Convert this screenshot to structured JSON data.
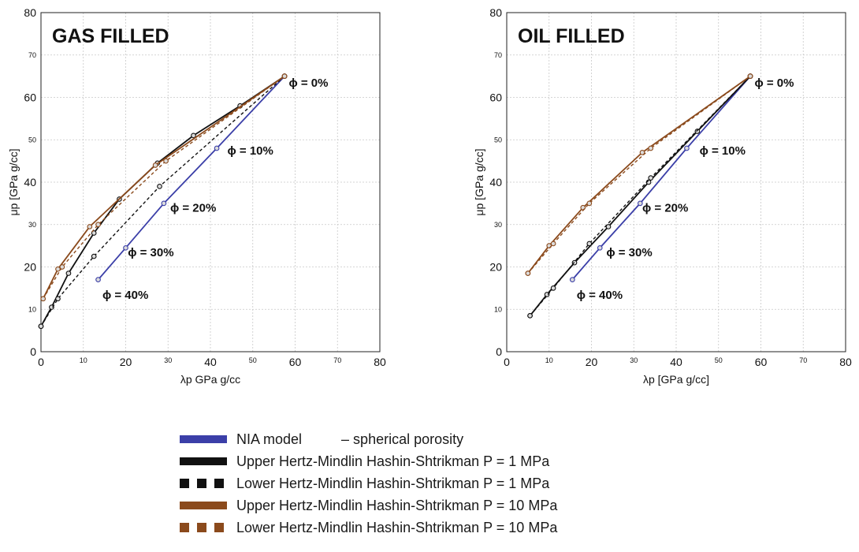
{
  "colors": {
    "nia": "#3b3fa8",
    "hm1": "#111111",
    "hm10": "#8b4a1c",
    "grid": "#c8c8c8",
    "marker_fill": "#dcdcdc"
  },
  "chart_data": [
    {
      "type": "line",
      "title": "GAS FILLED",
      "xlabel": "λp GPa g/cc",
      "ylabel": "μp [GPa g/cc]",
      "xlim": [
        0,
        80
      ],
      "ylim": [
        0,
        80
      ],
      "grid": true,
      "x_major_ticks": [
        "0",
        "20",
        "40",
        "60",
        "80"
      ],
      "x_minor_ticks": [
        "10",
        "30",
        "50",
        "70"
      ],
      "y_major_ticks": [
        "0",
        "20",
        "40",
        "60",
        "80"
      ],
      "y_minor_ticks": [
        "10",
        "30",
        "50",
        "70"
      ],
      "series": [
        {
          "name": "NIA model",
          "style": "solid",
          "color": "nia",
          "x": [
            57.5,
            41.5,
            29,
            20,
            13.5
          ],
          "y": [
            65,
            48,
            35,
            24.5,
            17
          ]
        },
        {
          "name": "Upper Hertz-Mindlin Hashin-Shtrikman P = 1 MPa",
          "style": "solid",
          "color": "hm1",
          "x": [
            0,
            2.5,
            6.5,
            12.5,
            18.5,
            27.5,
            36,
            47,
            57.5
          ],
          "y": [
            6,
            10.5,
            18.5,
            28,
            36,
            44.5,
            51,
            58,
            65
          ]
        },
        {
          "name": "Lower Hertz-Mindlin Hashin-Shtrikman P = 1 MPa",
          "style": "dashed",
          "color": "hm1",
          "x": [
            0,
            4,
            12.5,
            28,
            57.5
          ],
          "y": [
            6,
            12.5,
            22.5,
            39,
            65
          ]
        },
        {
          "name": "Upper Hertz-Mindlin Hashin-Shtrikman P = 10 MPa",
          "style": "solid",
          "color": "hm10",
          "x": [
            0.5,
            4,
            11.5,
            27,
            57.5
          ],
          "y": [
            12.5,
            19.5,
            29.5,
            44,
            65
          ]
        },
        {
          "name": "Lower Hertz-Mindlin Hashin-Shtrikman P = 10 MPa",
          "style": "dashed",
          "color": "hm10",
          "x": [
            0.5,
            5,
            13.5,
            29.5,
            57.5
          ],
          "y": [
            12.5,
            20,
            30,
            45,
            65
          ]
        }
      ],
      "annotations": [
        {
          "text": "ϕ = 0%",
          "x": 58.5,
          "y": 62.5
        },
        {
          "text": "ϕ = 10%",
          "x": 44,
          "y": 46.5
        },
        {
          "text": "ϕ = 20%",
          "x": 30.5,
          "y": 33
        },
        {
          "text": "ϕ = 30%",
          "x": 20.5,
          "y": 22.5
        },
        {
          "text": "ϕ = 40%",
          "x": 14.5,
          "y": 12.5
        }
      ]
    },
    {
      "type": "line",
      "title": "OIL FILLED",
      "xlabel": "λp [GPa g/cc]",
      "ylabel": "μp [GPa g/cc]",
      "xlim": [
        0,
        80
      ],
      "ylim": [
        0,
        80
      ],
      "grid": true,
      "x_major_ticks": [
        "0",
        "20",
        "40",
        "60",
        "80"
      ],
      "x_minor_ticks": [
        "10",
        "30",
        "50",
        "70"
      ],
      "y_major_ticks": [
        "0",
        "20",
        "40",
        "60",
        "80"
      ],
      "y_minor_ticks": [
        "10",
        "30",
        "50",
        "70"
      ],
      "series": [
        {
          "name": "NIA model",
          "style": "solid",
          "color": "nia",
          "x": [
            57.5,
            42.5,
            31.5,
            22,
            15.5
          ],
          "y": [
            65,
            48,
            35,
            24.5,
            17
          ]
        },
        {
          "name": "Upper Hertz-Mindlin Hashin-Shtrikman P = 1 MPa",
          "style": "solid",
          "color": "hm1",
          "x": [
            5.5,
            9.5,
            16,
            24,
            33.5,
            45,
            57.5
          ],
          "y": [
            8.5,
            13.5,
            21,
            29.5,
            40,
            52,
            65
          ]
        },
        {
          "name": "Lower Hertz-Mindlin Hashin-Shtrikman P = 1 MPa",
          "style": "dashed",
          "color": "hm1",
          "x": [
            5.5,
            11,
            19.5,
            34,
            57.5
          ],
          "y": [
            8.5,
            15,
            25.5,
            41,
            65
          ]
        },
        {
          "name": "Upper Hertz-Mindlin Hashin-Shtrikman P = 10 MPa",
          "style": "solid",
          "color": "hm10",
          "x": [
            5,
            10,
            18,
            32,
            57.5
          ],
          "y": [
            18.5,
            25,
            34,
            47,
            65
          ]
        },
        {
          "name": "Lower Hertz-Mindlin Hashin-Shtrikman P = 10 MPa",
          "style": "dashed",
          "color": "hm10",
          "x": [
            5,
            11,
            19.5,
            34,
            57.5
          ],
          "y": [
            18.5,
            25.5,
            35,
            48,
            65
          ]
        }
      ],
      "annotations": [
        {
          "text": "ϕ = 0%",
          "x": 58.5,
          "y": 62.5
        },
        {
          "text": "ϕ = 10%",
          "x": 45.5,
          "y": 46.5
        },
        {
          "text": "ϕ = 20%",
          "x": 32,
          "y": 33
        },
        {
          "text": "ϕ = 30%",
          "x": 23.5,
          "y": 22.5
        },
        {
          "text": "ϕ = 40%",
          "x": 16.5,
          "y": 12.5
        }
      ]
    }
  ],
  "legend": {
    "placement": "bottom-center",
    "items": [
      {
        "label": "NIA model          – spherical porosity",
        "style": "solid",
        "color": "nia"
      },
      {
        "label": "Upper Hertz-Mindlin Hashin-Shtrikman P = 1 MPa",
        "style": "solid",
        "color": "hm1"
      },
      {
        "label": "Lower Hertz-Mindlin Hashin-Shtrikman P = 1 MPa",
        "style": "dashed",
        "color": "hm1"
      },
      {
        "label": "Upper Hertz-Mindlin Hashin-Shtrikman P = 10 MPa",
        "style": "solid",
        "color": "hm10"
      },
      {
        "label": "Lower Hertz-Mindlin Hashin-Shtrikman P = 10 MPa",
        "style": "dashed",
        "color": "hm10"
      }
    ]
  }
}
